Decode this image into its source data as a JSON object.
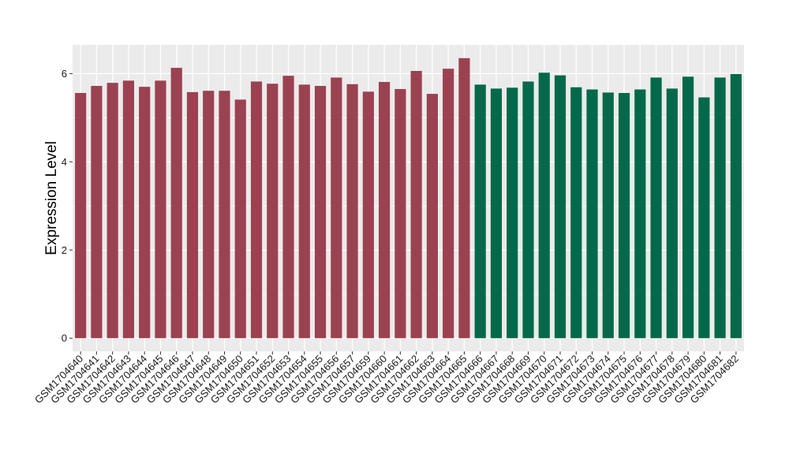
{
  "chart_data": {
    "type": "bar",
    "ylabel": "Expression Level",
    "xlabel": "",
    "ylim": [
      -0.3,
      6.65
    ],
    "yticks": [
      0,
      2,
      4,
      6
    ],
    "grid": true,
    "colors": {
      "group1": "#9b4251",
      "group2": "#03694a",
      "panel": "#ebebeb",
      "gridline": "#ffffff"
    },
    "categories": [
      "GSM1704640",
      "GSM1704641",
      "GSM1704642",
      "GSM1704643",
      "GSM1704644",
      "GSM1704645",
      "GSM1704646",
      "GSM1704647",
      "GSM1704648",
      "GSM1704649",
      "GSM1704650",
      "GSM1704651",
      "GSM1704652",
      "GSM1704653",
      "GSM1704654",
      "GSM1704655",
      "GSM1704656",
      "GSM1704657",
      "GSM1704659",
      "GSM1704660",
      "GSM1704661",
      "GSM1704662",
      "GSM1704663",
      "GSM1704664",
      "GSM1704665",
      "GSM1704666",
      "GSM1704667",
      "GSM1704668",
      "GSM1704669",
      "GSM1704670",
      "GSM1704671",
      "GSM1704672",
      "GSM1704673",
      "GSM1704674",
      "GSM1704675",
      "GSM1704676",
      "GSM1704677",
      "GSM1704678",
      "GSM1704679",
      "GSM1704680",
      "GSM1704681",
      "GSM1704682"
    ],
    "values": [
      5.56,
      5.72,
      5.79,
      5.84,
      5.7,
      5.84,
      6.13,
      5.58,
      5.61,
      5.61,
      5.41,
      5.82,
      5.77,
      5.95,
      5.75,
      5.72,
      5.91,
      5.76,
      5.59,
      5.81,
      5.65,
      6.06,
      5.54,
      6.11,
      6.35,
      5.75,
      5.66,
      5.68,
      5.82,
      6.02,
      5.96,
      5.69,
      5.64,
      5.57,
      5.56,
      5.64,
      5.91,
      5.66,
      5.93,
      5.46,
      5.91,
      5.99
    ],
    "groups": [
      1,
      1,
      1,
      1,
      1,
      1,
      1,
      1,
      1,
      1,
      1,
      1,
      1,
      1,
      1,
      1,
      1,
      1,
      1,
      1,
      1,
      1,
      1,
      1,
      1,
      2,
      2,
      2,
      2,
      2,
      2,
      2,
      2,
      2,
      2,
      2,
      2,
      2,
      2,
      2,
      2,
      2
    ]
  }
}
